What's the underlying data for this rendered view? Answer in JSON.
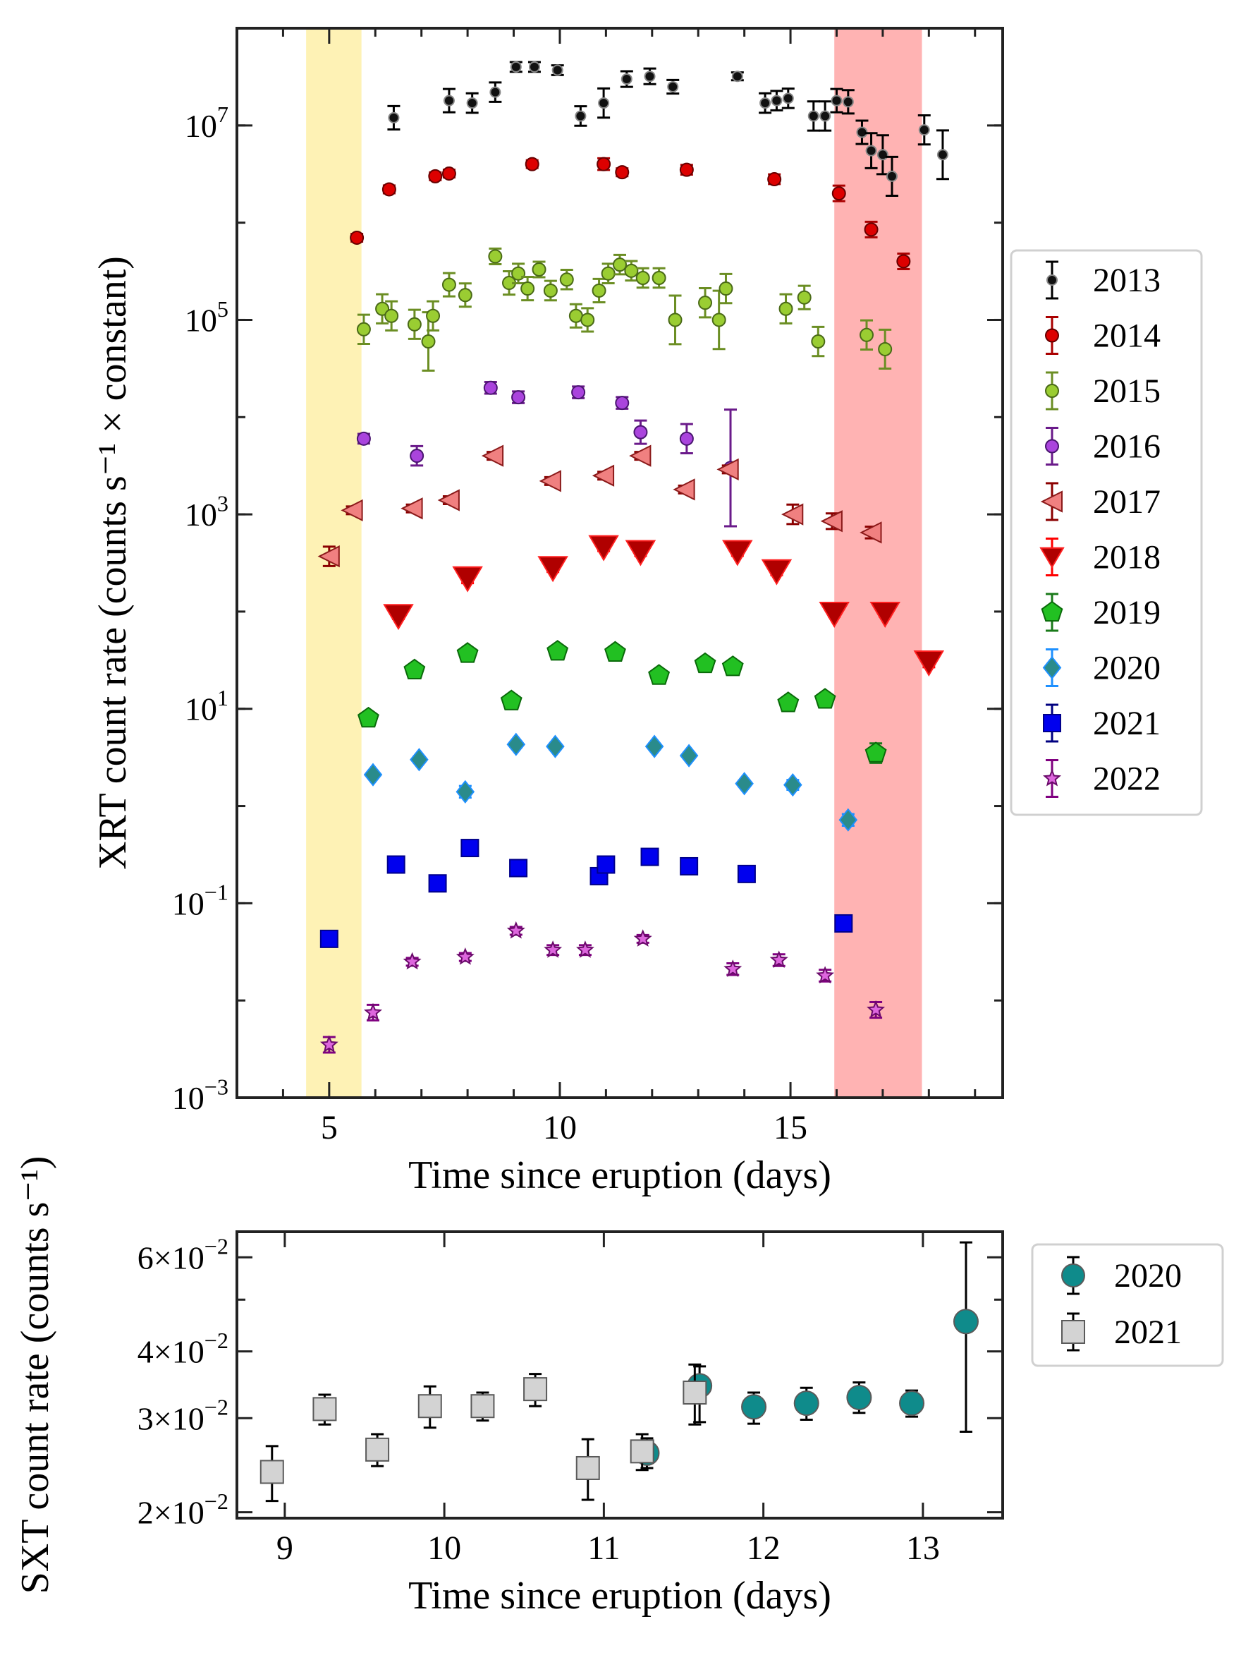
{
  "chart_data": [
    {
      "type": "scatter",
      "yscale": "log",
      "xlabel": "Time since eruption (days)",
      "ylabel": "XRT count rate (counts s⁻¹ × constant)",
      "xlim": [
        3,
        19.6
      ],
      "ylim": [
        0.001,
        100000000
      ],
      "xticks": [
        5,
        10,
        15
      ],
      "yticks": [
        {
          "value": 0.001,
          "base": "10",
          "exp": "−3"
        },
        {
          "value": 0.1,
          "base": "10",
          "exp": "−1"
        },
        {
          "value": 10,
          "base": "10",
          "exp": "1"
        },
        {
          "value": 1000,
          "base": "10",
          "exp": "3"
        },
        {
          "value": 100000,
          "base": "10",
          "exp": "5"
        },
        {
          "value": 10000000,
          "base": "10",
          "exp": "7"
        }
      ],
      "shaded_regions": [
        {
          "x0": 4.5,
          "x1": 5.7,
          "color": "#fef2b5"
        },
        {
          "x0": 15.95,
          "x1": 17.85,
          "color": "#ffb3b3"
        }
      ],
      "legend_position": "right",
      "series": [
        {
          "name": "2013",
          "marker": "circle",
          "color": "#111111",
          "edge": "#888888",
          "size": 7,
          "errcolor": "#000000",
          "x": [
            6.4,
            7.6,
            8.1,
            8.6,
            9.05,
            9.45,
            9.95,
            10.45,
            10.95,
            11.45,
            11.95,
            12.45,
            13.85,
            14.45,
            14.7,
            14.95,
            15.5,
            15.75,
            16.0,
            16.25,
            16.55,
            16.75,
            17.0,
            17.2,
            17.9,
            18.3
          ],
          "y": [
            12000000,
            18000000,
            17000000,
            22000000,
            40000000,
            40000000,
            37000000,
            12500000,
            17000000,
            30000000,
            32000000,
            25000000,
            32000000,
            17000000,
            18000000,
            19000000,
            12500000,
            12500000,
            18000000,
            17500000,
            8500000,
            5500000,
            5000000,
            3000000,
            9000000,
            5000000
          ],
          "err": [
            0.12,
            0.12,
            0.1,
            0.1,
            0.05,
            0.05,
            0.05,
            0.1,
            0.15,
            0.08,
            0.08,
            0.07,
            0.04,
            0.1,
            0.1,
            0.1,
            0.15,
            0.15,
            0.12,
            0.12,
            0.12,
            0.18,
            0.2,
            0.2,
            0.15,
            0.25
          ]
        },
        {
          "name": "2014",
          "marker": "circle",
          "color": "#dd0000",
          "edge": "#660000",
          "size": 9,
          "errcolor": "#aa0000",
          "x": [
            5.6,
            6.3,
            7.3,
            7.6,
            9.4,
            10.95,
            11.35,
            12.75,
            14.65,
            16.05,
            16.75,
            17.45
          ],
          "y": [
            700000,
            2200000,
            3000000,
            3200000,
            4000000,
            4000000,
            3300000,
            3500000,
            2800000,
            2000000,
            850000,
            400000
          ],
          "err": [
            0.04,
            0.04,
            0.04,
            0.04,
            0.04,
            0.06,
            0.04,
            0.05,
            0.05,
            0.08,
            0.08,
            0.08
          ]
        },
        {
          "name": "2015",
          "marker": "circle",
          "color": "#9acd32",
          "edge": "#4a6a18",
          "size": 9,
          "errcolor": "#6b8e23",
          "x": [
            5.75,
            6.15,
            6.35,
            6.85,
            7.15,
            7.25,
            7.6,
            7.95,
            8.6,
            8.9,
            9.1,
            9.3,
            9.55,
            9.8,
            10.15,
            10.35,
            10.6,
            10.85,
            11.05,
            11.3,
            11.55,
            11.8,
            12.15,
            12.5,
            13.15,
            13.45,
            13.6,
            14.9,
            15.3,
            15.6,
            16.65,
            17.05
          ],
          "y": [
            80000,
            130000,
            110000,
            90000,
            60000,
            110000,
            230000,
            180000,
            450000,
            240000,
            300000,
            210000,
            330000,
            200000,
            260000,
            110000,
            100000,
            200000,
            300000,
            370000,
            320000,
            270000,
            270000,
            100000,
            150000,
            100000,
            210000,
            130000,
            170000,
            60000,
            70000,
            50000
          ],
          "err": [
            0.15,
            0.15,
            0.15,
            0.15,
            0.3,
            0.15,
            0.12,
            0.12,
            0.08,
            0.12,
            0.1,
            0.12,
            0.08,
            0.1,
            0.1,
            0.12,
            0.12,
            0.12,
            0.1,
            0.1,
            0.1,
            0.1,
            0.1,
            0.25,
            0.15,
            0.3,
            0.15,
            0.15,
            0.12,
            0.15,
            0.15,
            0.2
          ]
        },
        {
          "name": "2016",
          "marker": "circle",
          "color": "#aa44dd",
          "edge": "#4a1670",
          "size": 9,
          "errcolor": "#6a1a8a",
          "x": [
            5.75,
            6.9,
            8.5,
            9.1,
            10.4,
            11.35,
            11.75,
            12.75,
            13.7
          ],
          "y": [
            6000,
            4000,
            20000,
            16000,
            18000,
            14000,
            7000,
            6000,
            3000
          ],
          "err": [
            0.05,
            0.1,
            0.06,
            0.06,
            0.06,
            0.06,
            0.12,
            0.15,
            0.6
          ]
        },
        {
          "name": "2017",
          "marker": "triangle-left",
          "color": "#f08080",
          "edge": "#8b1a1a",
          "size": 14,
          "errcolor": "#8b0000",
          "x": [
            5.0,
            5.5,
            6.8,
            7.6,
            8.55,
            9.8,
            10.95,
            11.75,
            12.7,
            13.65,
            15.05,
            15.9,
            16.75
          ],
          "y": [
            370,
            1100,
            1150,
            1400,
            4000,
            2200,
            2500,
            4000,
            1800,
            2900,
            1000,
            850,
            650
          ],
          "err": [
            0.1,
            0.04,
            0.04,
            0.04,
            0.04,
            0.04,
            0.04,
            0.04,
            0.04,
            0.04,
            0.1,
            0.08,
            0.06
          ]
        },
        {
          "name": "2018",
          "marker": "triangle-down",
          "color": "#b00000",
          "edge": "#ff2020",
          "size": 20,
          "errcolor": "#ff0000",
          "x": [
            6.5,
            8.0,
            9.85,
            10.95,
            11.75,
            13.85,
            14.7,
            15.95,
            17.05,
            18.0
          ],
          "y": [
            90,
            220,
            280,
            460,
            410,
            410,
            260,
            95,
            95,
            30
          ],
          "err": [
            0.03,
            0.05,
            0.04,
            0.04,
            0.04,
            0.04,
            0.04,
            0.03,
            0.03,
            0.05
          ]
        },
        {
          "name": "2019",
          "marker": "pentagon",
          "color": "#22c022",
          "edge": "#0a6a0a",
          "size": 15,
          "errcolor": "#1a7a1a",
          "x": [
            5.85,
            6.85,
            8.0,
            8.95,
            9.95,
            11.2,
            12.15,
            13.15,
            13.75,
            14.95,
            15.75,
            16.85
          ],
          "y": [
            8,
            25,
            37,
            12,
            39,
            38,
            22,
            29,
            27,
            11.5,
            12.5,
            3.5
          ],
          "err": [
            0.03,
            0.02,
            0.02,
            0.02,
            0.02,
            0.02,
            0.02,
            0.02,
            0.02,
            0.02,
            0.02,
            0.1
          ]
        },
        {
          "name": "2020",
          "marker": "diamond",
          "color": "#2a8b8b",
          "edge": "#1e90ff",
          "size": 15,
          "errcolor": "#1e90ff",
          "x": [
            5.95,
            6.95,
            7.95,
            9.05,
            9.9,
            12.05,
            12.8,
            14.0,
            15.05,
            16.25
          ],
          "y": [
            2.1,
            3.0,
            1.4,
            4.3,
            4.1,
            4.1,
            3.3,
            1.7,
            1.65,
            0.72
          ],
          "err": [
            0.03,
            0.03,
            0.06,
            0.03,
            0.03,
            0.03,
            0.03,
            0.03,
            0.05,
            0.06
          ]
        },
        {
          "name": "2021",
          "marker": "square",
          "color": "#0000ee",
          "edge": "#00008b",
          "size": 12,
          "errcolor": "#000080",
          "x": [
            5.0,
            6.45,
            7.35,
            8.05,
            9.1,
            10.85,
            11.0,
            11.95,
            12.8,
            14.05,
            16.15
          ],
          "y": [
            0.043,
            0.25,
            0.16,
            0.37,
            0.23,
            0.19,
            0.25,
            0.3,
            0.24,
            0.2,
            0.062
          ],
          "err": [
            0.05,
            0.02,
            0.02,
            0.02,
            0.02,
            0.02,
            0.02,
            0.02,
            0.02,
            0.02,
            0.04
          ]
        },
        {
          "name": "2022",
          "marker": "star",
          "color": "#dd66dd",
          "edge": "#6a0a6a",
          "size": 11,
          "errcolor": "#800080",
          "x": [
            5.0,
            5.95,
            6.8,
            7.95,
            9.05,
            9.85,
            10.55,
            11.8,
            13.75,
            14.75,
            15.75,
            16.85
          ],
          "y": [
            0.0035,
            0.0075,
            0.025,
            0.028,
            0.052,
            0.033,
            0.033,
            0.043,
            0.021,
            0.026,
            0.018,
            0.008
          ],
          "err": [
            0.08,
            0.08,
            0.04,
            0.04,
            0.04,
            0.05,
            0.05,
            0.04,
            0.06,
            0.06,
            0.06,
            0.08
          ]
        }
      ]
    },
    {
      "type": "scatter",
      "yscale": "log",
      "xlabel": "Time since eruption (days)",
      "ylabel": "SXT count rate (counts s⁻¹)",
      "xlim": [
        8.7,
        13.5
      ],
      "ylim": [
        0.0195,
        0.067
      ],
      "xticks": [
        9,
        10,
        11,
        12,
        13
      ],
      "yticks": [
        {
          "value": 0.02,
          "base": "2×10",
          "exp": "−2"
        },
        {
          "value": 0.03,
          "base": "3×10",
          "exp": "−2"
        },
        {
          "value": 0.04,
          "base": "4×10",
          "exp": "−2"
        },
        {
          "value": 0.06,
          "base": "6×10",
          "exp": "−2"
        }
      ],
      "minor_yticks": [
        0.05
      ],
      "legend_position": "right",
      "series": [
        {
          "name": "2020",
          "marker": "circle",
          "color": "#0f8b8b",
          "edge": "#5a5a5a",
          "size": 17,
          "errcolor": "#000000",
          "x": [
            11.27,
            11.6,
            11.94,
            12.27,
            12.6,
            12.93,
            13.27
          ],
          "y": [
            0.0258,
            0.0345,
            0.0315,
            0.032,
            0.0328,
            0.032,
            0.0455
          ],
          "lo": [
            0.0242,
            0.0295,
            0.0293,
            0.0298,
            0.0307,
            0.0302,
            0.0283
          ],
          "hi": [
            0.0275,
            0.0375,
            0.0335,
            0.0342,
            0.035,
            0.0338,
            0.064
          ]
        },
        {
          "name": "2021",
          "marker": "square",
          "color": "#d3d3d3",
          "edge": "#5a5a5a",
          "size": 16,
          "errcolor": "#000000",
          "x": [
            8.92,
            9.25,
            9.58,
            9.91,
            10.24,
            10.57,
            10.9,
            11.24,
            11.57
          ],
          "y": [
            0.0238,
            0.0312,
            0.0262,
            0.0316,
            0.0316,
            0.034,
            0.0242,
            0.026,
            0.0335
          ],
          "lo": [
            0.021,
            0.0292,
            0.0244,
            0.0288,
            0.0297,
            0.0316,
            0.0211,
            0.024,
            0.0292
          ],
          "hi": [
            0.0266,
            0.0332,
            0.028,
            0.0344,
            0.0335,
            0.0363,
            0.0274,
            0.028,
            0.0378
          ]
        }
      ]
    }
  ]
}
